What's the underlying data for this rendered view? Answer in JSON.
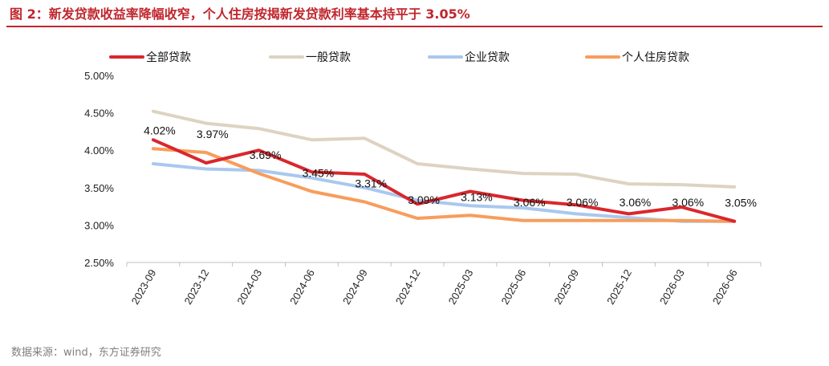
{
  "header": {
    "title": "图 2：新发贷款收益率降幅收窄，个人住房按揭新发贷款利率基本持平于 3.05%"
  },
  "footer": {
    "source": "数据来源：wind，东方证券研究"
  },
  "chart_data": {
    "type": "line",
    "title": "",
    "xlabel": "",
    "ylabel": "",
    "categories": [
      "2023-09",
      "2023-12",
      "2024-03",
      "2024-06",
      "2024-09",
      "2024-12",
      "2025-03",
      "2025-06",
      "2025-09",
      "2025-12",
      "2026-03",
      "2026-06"
    ],
    "ylim": [
      2.5,
      5.0
    ],
    "y_ticks": [
      "2.50%",
      "3.00%",
      "3.50%",
      "4.00%",
      "4.50%",
      "5.00%"
    ],
    "y_tick_values": [
      2.5,
      3.0,
      3.5,
      4.0,
      4.5,
      5.0
    ],
    "grid": false,
    "legend_position": "top",
    "series": [
      {
        "name": "全部贷款",
        "color": "#d9272e",
        "values": [
          4.14,
          3.83,
          4.0,
          3.71,
          3.68,
          3.28,
          3.45,
          3.33,
          3.27,
          3.15,
          3.24,
          3.05
        ]
      },
      {
        "name": "一般贷款",
        "color": "#ddd3c1",
        "values": [
          4.52,
          4.36,
          4.29,
          4.14,
          4.16,
          3.82,
          3.75,
          3.69,
          3.68,
          3.55,
          3.54,
          3.51
        ]
      },
      {
        "name": "企业贷款",
        "color": "#a9c8ef",
        "values": [
          3.82,
          3.75,
          3.73,
          3.63,
          3.5,
          3.33,
          3.26,
          3.23,
          3.15,
          3.1,
          3.05,
          3.05
        ]
      },
      {
        "name": "个人住房贷款",
        "color": "#f79d5c",
        "values": [
          4.02,
          3.97,
          3.69,
          3.45,
          3.31,
          3.09,
          3.13,
          3.06,
          3.06,
          3.06,
          3.06,
          3.05
        ]
      }
    ],
    "data_labels": {
      "series": "个人住房贷款",
      "texts": [
        "4.02%",
        "3.97%",
        "3.69%",
        "3.45%",
        "3.31%",
        "3.09%",
        "3.13%",
        "3.06%",
        "3.06%",
        "3.06%",
        "3.06%",
        "3.05%"
      ]
    }
  }
}
